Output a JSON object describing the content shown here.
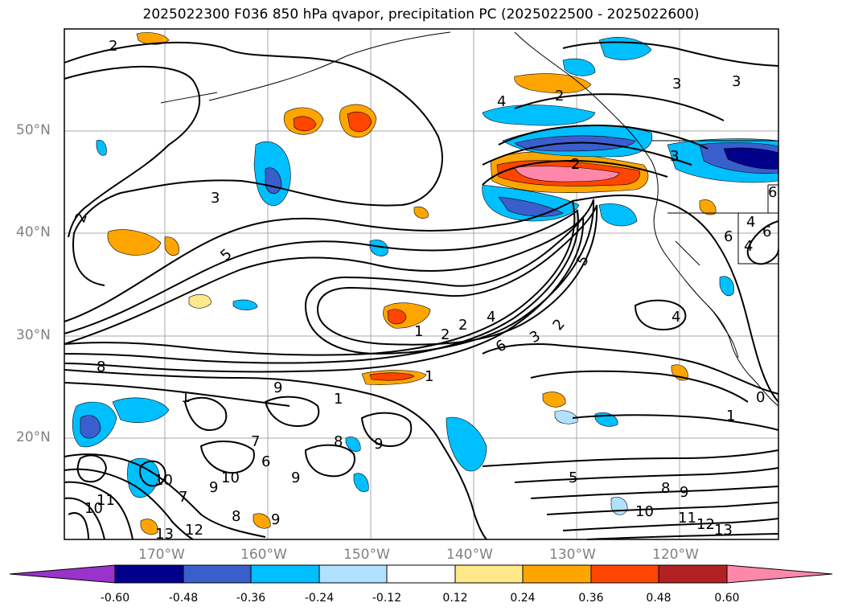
{
  "title": "2025022300 F036 850 hPa qvapor, precipitation PC (2025022500 - 2025022600)",
  "map": {
    "lat_labels": [
      "50°N",
      "40°N",
      "30°N",
      "20°N"
    ],
    "lon_labels": [
      "170°W",
      "160°W",
      "150°W",
      "140°W",
      "130°W",
      "120°W"
    ],
    "contour_labels": [
      "2",
      "3",
      "2",
      "5",
      "1",
      "2",
      "2",
      "4",
      "6",
      "3",
      "5",
      "2",
      "8",
      "9",
      "1",
      "9",
      "8",
      "9",
      "7",
      "6",
      "10",
      "9",
      "10",
      "7",
      "11",
      "10",
      "12",
      "13",
      "8",
      "9",
      "10",
      "8",
      "9",
      "11",
      "12",
      "13",
      "5",
      "1",
      "1",
      "2",
      "3",
      "4",
      "3",
      "3",
      "6",
      "4",
      "6",
      "6",
      "4",
      "2",
      "1",
      "4",
      "0"
    ]
  },
  "colorbar": {
    "colors": [
      "#9933cc",
      "#00008b",
      "#3a5fcd",
      "#00bfff",
      "#b0e2ff",
      "#ffffff",
      "#ffe88a",
      "#ffa500",
      "#ff4500",
      "#b22222",
      "#ff88aa"
    ],
    "ticks": [
      "-0.60",
      "-0.48",
      "-0.36",
      "-0.24",
      "-0.12",
      "0.12",
      "0.24",
      "0.36",
      "0.48",
      "0.60"
    ]
  }
}
